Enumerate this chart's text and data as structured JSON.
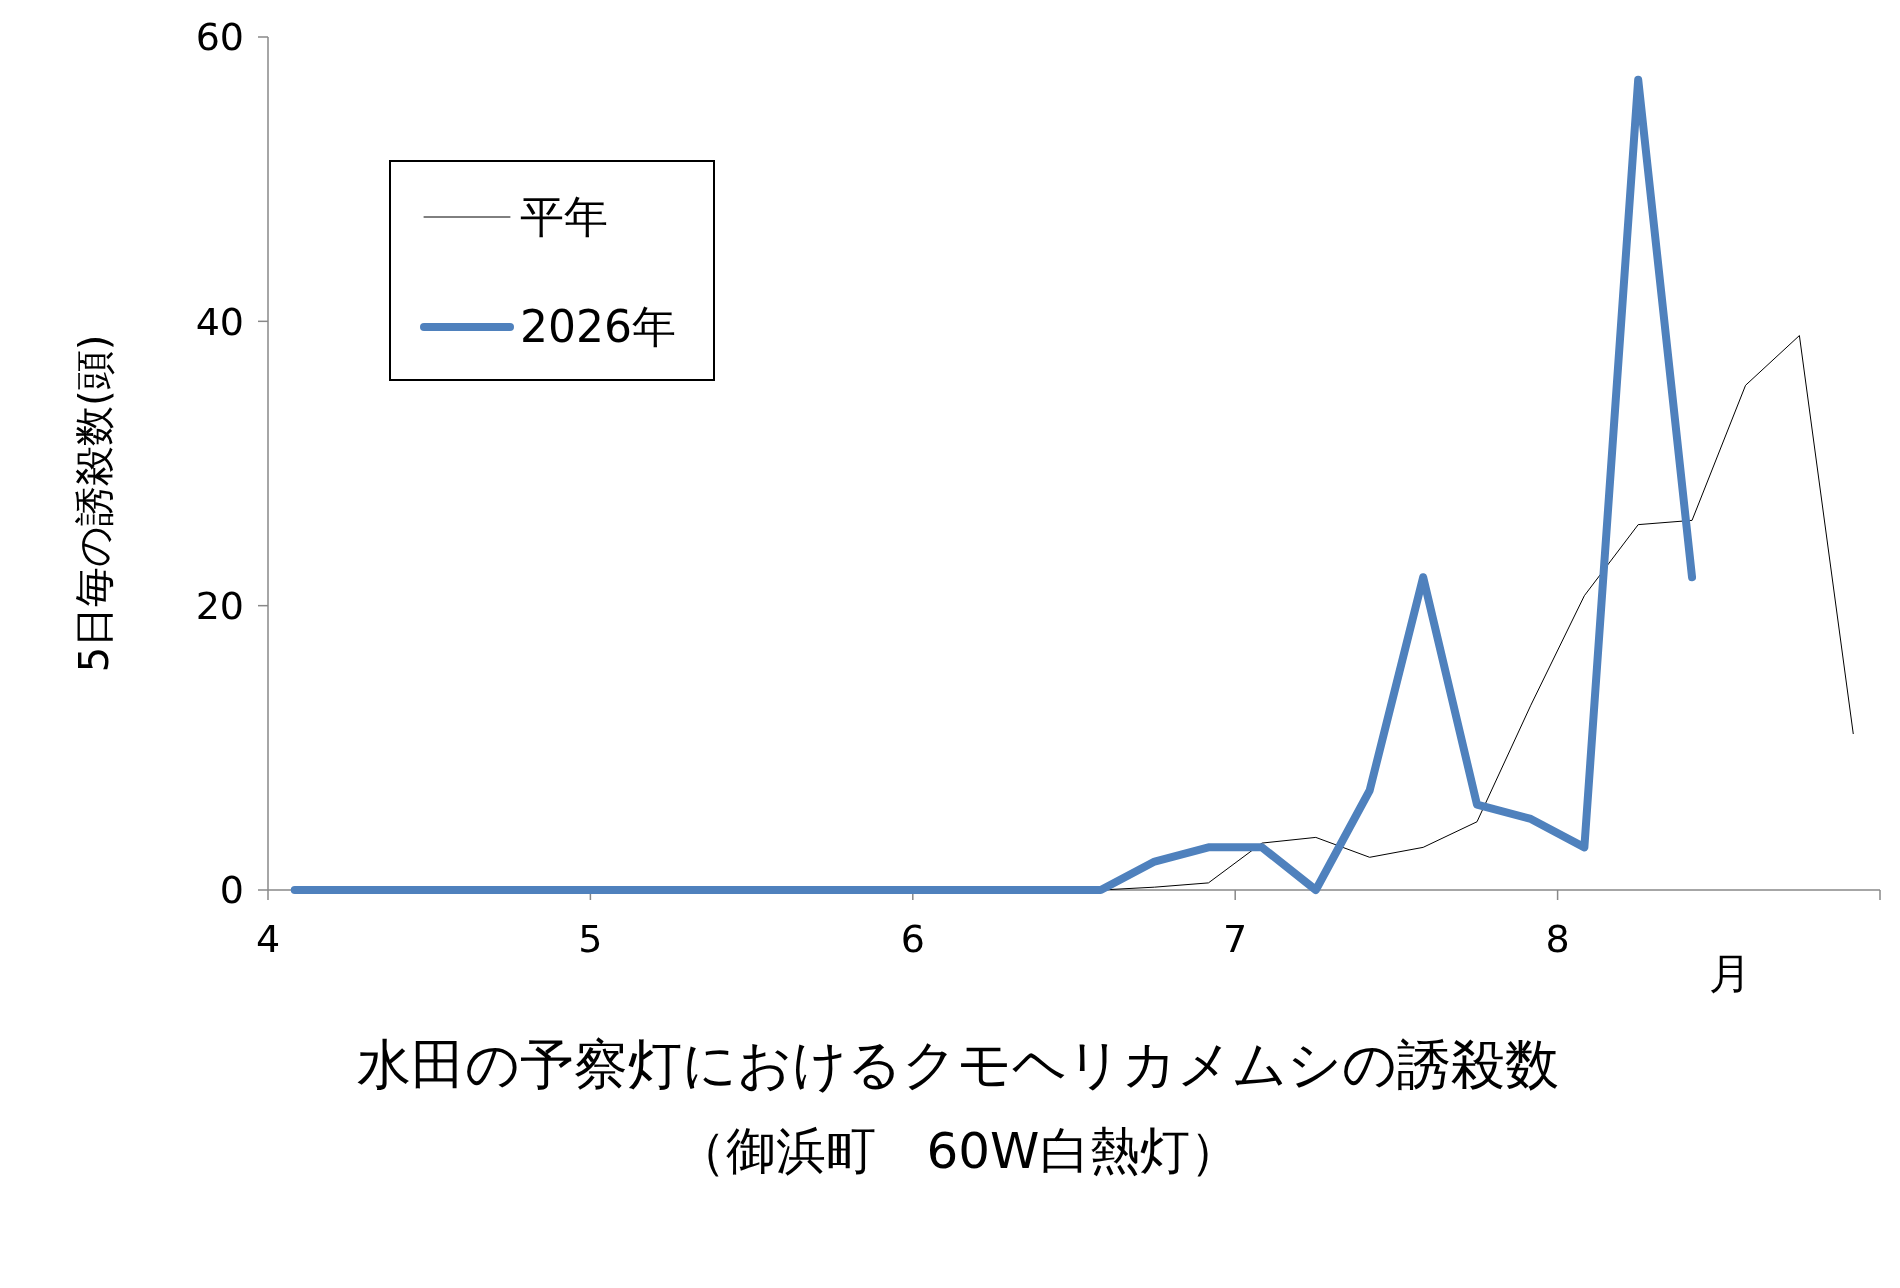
{
  "chart_data": {
    "type": "line",
    "title": "水田の予察灯におけるクモヘリカメムシの誘殺数",
    "subtitle": "（御浜町　60W白熱灯）",
    "xlabel": "月",
    "ylabel": "5日毎の誘殺数(頭)",
    "x": [
      4.083,
      4.25,
      4.417,
      4.583,
      4.75,
      4.917,
      5.083,
      5.25,
      5.417,
      5.583,
      5.75,
      5.917,
      6.083,
      6.25,
      6.417,
      6.583,
      6.75,
      6.917,
      7.083,
      7.25,
      7.417,
      7.583,
      7.75,
      7.917,
      8.083,
      8.25,
      8.417,
      8.583,
      8.75,
      8.917
    ],
    "series": [
      {
        "name": "平年",
        "color": "#000000",
        "values": [
          null,
          null,
          null,
          null,
          null,
          null,
          null,
          null,
          null,
          null,
          null,
          null,
          null,
          null,
          null,
          0,
          0.2,
          0.5,
          3.3,
          3.7,
          2.3,
          3,
          4.8,
          13,
          20.7,
          25.7,
          26,
          35.5,
          39,
          11
        ]
      },
      {
        "name": "2026年",
        "color": "#4f81bd",
        "values": [
          0,
          0,
          0,
          0,
          0,
          0,
          0,
          0,
          0,
          0,
          0,
          0,
          0,
          0,
          0,
          0,
          2,
          3,
          3,
          0,
          7,
          22,
          6,
          5,
          3,
          57,
          22,
          null,
          null,
          null
        ]
      }
    ],
    "xlim": [
      4,
      9
    ],
    "xticks": [
      4,
      5,
      6,
      7,
      8,
      {
        "value": 9,
        "label": null
      }
    ],
    "ylim": [
      0,
      60
    ],
    "yticks": [
      0,
      20,
      40,
      60
    ],
    "grid": false,
    "legend": "top left",
    "marker": "none",
    "line_style": "solid"
  }
}
